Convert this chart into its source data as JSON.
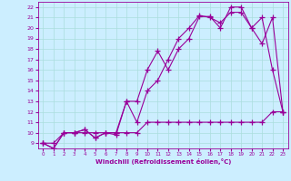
{
  "xlabel": "Windchill (Refroidissement éolien,°C)",
  "bg_color": "#cceeff",
  "line_color": "#990099",
  "grid_color": "#aadddd",
  "xlim": [
    -0.5,
    23.5
  ],
  "ylim": [
    8.5,
    22.5
  ],
  "xticks": [
    0,
    1,
    2,
    3,
    4,
    5,
    6,
    7,
    8,
    9,
    10,
    11,
    12,
    13,
    14,
    15,
    16,
    17,
    18,
    19,
    20,
    21,
    22,
    23
  ],
  "yticks": [
    9,
    10,
    11,
    12,
    13,
    14,
    15,
    16,
    17,
    18,
    19,
    20,
    21,
    22
  ],
  "series1_x": [
    0,
    1,
    2,
    3,
    4,
    5,
    6,
    7,
    8,
    9,
    10,
    11,
    12,
    13,
    14,
    15,
    16,
    17,
    18,
    19,
    20,
    21,
    22,
    23
  ],
  "series1_y": [
    9,
    9,
    10,
    10,
    10,
    10,
    10,
    10,
    10,
    10,
    11,
    11,
    11,
    11,
    11,
    11,
    11,
    11,
    11,
    11,
    11,
    11,
    12,
    12
  ],
  "series2_x": [
    0,
    1,
    2,
    3,
    4,
    5,
    6,
    7,
    8,
    9,
    10,
    11,
    12,
    13,
    14,
    15,
    16,
    17,
    18,
    19,
    20,
    21,
    22,
    23
  ],
  "series2_y": [
    9,
    8.5,
    10,
    10,
    10.3,
    9.5,
    10,
    9.8,
    13,
    13,
    16,
    17.8,
    16,
    18,
    19,
    21.1,
    21.1,
    20,
    22,
    22,
    20,
    21,
    16,
    12
  ],
  "series3_x": [
    0,
    1,
    2,
    3,
    4,
    5,
    6,
    7,
    8,
    9,
    10,
    11,
    12,
    13,
    14,
    15,
    16,
    17,
    18,
    19,
    20,
    21,
    22,
    23
  ],
  "series3_y": [
    9,
    8.5,
    10,
    10,
    10.3,
    9.5,
    10,
    10,
    13,
    11,
    14,
    15,
    17,
    19,
    20,
    21.2,
    21,
    20.5,
    21.5,
    21.5,
    20,
    18.5,
    21,
    12
  ]
}
